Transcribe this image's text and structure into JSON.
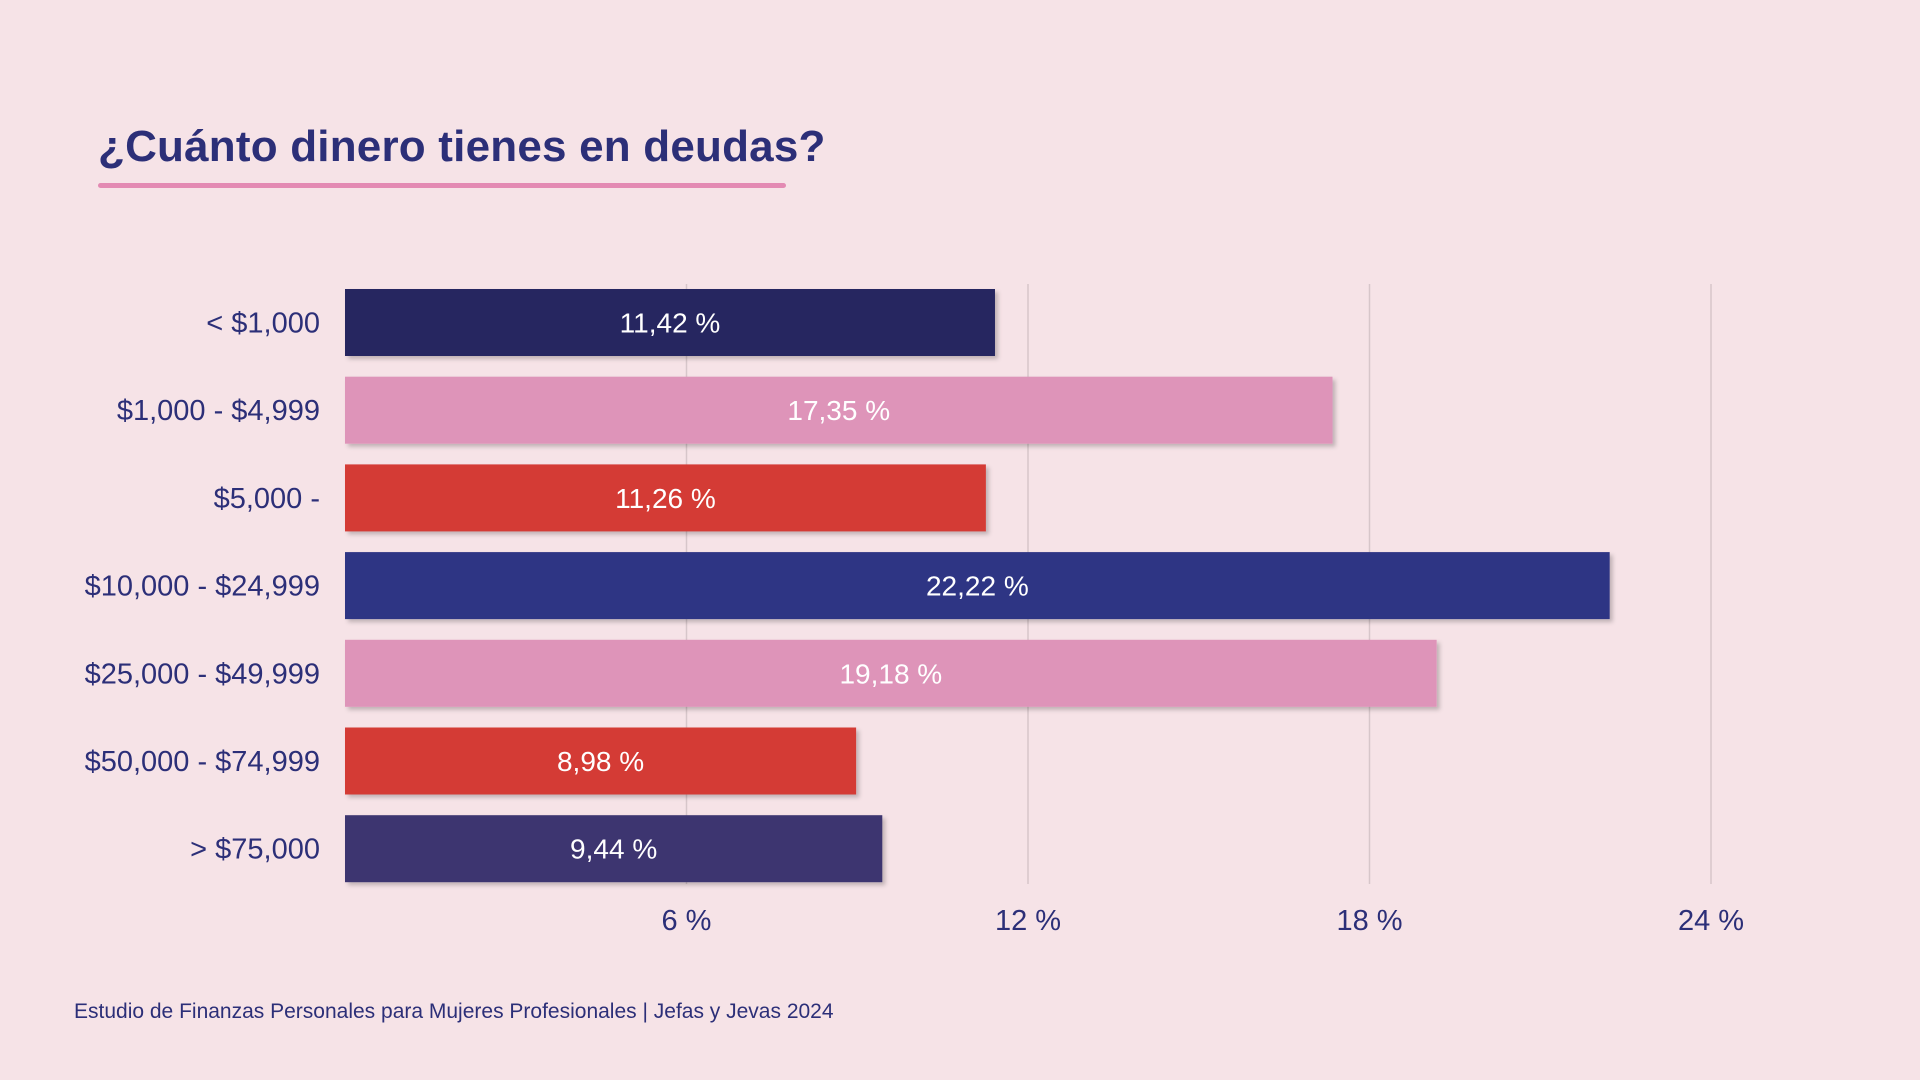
{
  "title": "¿Cuánto dinero tienes en deudas?",
  "footer": "Estudio de Finanzas Personales para Mujeres Profesionales | Jefas y Jevas 2024",
  "chart_data": {
    "type": "bar",
    "orientation": "horizontal",
    "title": "¿Cuánto dinero tienes en deudas?",
    "categories": [
      "< $1,000",
      "$1,000 - $4,999",
      "$5,000 -",
      "$10,000 - $24,999",
      "$25,000 - $49,999",
      "$50,000 - $74,999",
      "> $75,000"
    ],
    "values": [
      11.42,
      17.35,
      11.26,
      22.22,
      19.18,
      8.98,
      9.44
    ],
    "value_labels": [
      "11,42  %",
      "17,35  %",
      "11,26  %",
      "22,22  %",
      "19,18  %",
      "8,98  %",
      "9,44  %"
    ],
    "bar_colors": [
      "#272660",
      "#de94b9",
      "#d43a35",
      "#2f3584",
      "#de94b9",
      "#d43a35",
      "#3e3670"
    ],
    "xlim": [
      0,
      24
    ],
    "xticks": [
      6,
      12,
      18,
      24
    ],
    "xtick_labels": [
      "6 %",
      "12 %",
      "18 %",
      "24 %"
    ],
    "grid": true,
    "xlabel": "",
    "ylabel": ""
  }
}
